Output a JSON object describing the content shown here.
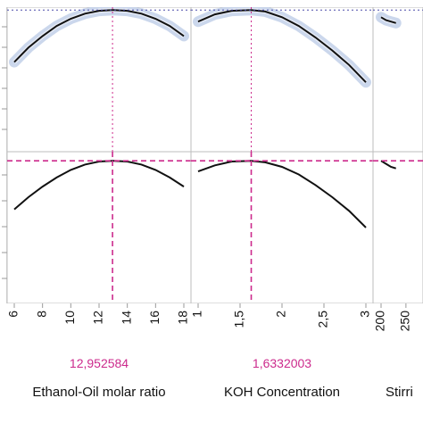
{
  "chart_data": {
    "type": "line",
    "panels": [
      {
        "factor_label": "Ethanol-Oil molar ratio",
        "current_value_label": "12,952584",
        "current_x": 12.952584,
        "x_range": [
          6,
          18
        ],
        "x_ticks": [
          {
            "value": 6,
            "label": "6"
          },
          {
            "value": 8,
            "label": "8"
          },
          {
            "value": 10,
            "label": "10"
          },
          {
            "value": 12,
            "label": "12"
          },
          {
            "value": 14,
            "label": "14"
          },
          {
            "value": 16,
            "label": "16"
          },
          {
            "value": 18,
            "label": "18"
          }
        ],
        "top_curve": {
          "x": [
            6,
            7,
            8,
            9,
            10,
            11,
            12,
            12.95,
            14,
            15,
            16,
            17,
            18
          ],
          "y": [
            0.62,
            0.72,
            0.8,
            0.87,
            0.92,
            0.955,
            0.975,
            0.98,
            0.975,
            0.955,
            0.92,
            0.87,
            0.8
          ]
        },
        "bottom_curve": {
          "x": [
            6,
            7,
            8,
            9,
            10,
            11,
            12,
            12.95,
            14,
            15,
            16,
            17,
            18
          ],
          "y": [
            0.62,
            0.7,
            0.77,
            0.83,
            0.88,
            0.915,
            0.935,
            0.94,
            0.935,
            0.915,
            0.88,
            0.83,
            0.77
          ]
        }
      },
      {
        "factor_label": "KOH Concentration",
        "current_value_label": "1,6332003",
        "current_x": 1.6332003,
        "x_range": [
          1,
          3
        ],
        "x_ticks": [
          {
            "value": 1,
            "label": "1"
          },
          {
            "value": 1.5,
            "label": "1,5"
          },
          {
            "value": 2,
            "label": "2"
          },
          {
            "value": 2.5,
            "label": "2,5"
          },
          {
            "value": 3,
            "label": "3"
          }
        ],
        "top_curve": {
          "x": [
            1,
            1.2,
            1.4,
            1.63,
            1.8,
            2,
            2.2,
            2.4,
            2.6,
            2.8,
            3
          ],
          "y": [
            0.9,
            0.95,
            0.975,
            0.98,
            0.97,
            0.93,
            0.87,
            0.79,
            0.7,
            0.6,
            0.48
          ]
        },
        "bottom_curve": {
          "x": [
            1,
            1.2,
            1.4,
            1.63,
            1.8,
            2,
            2.2,
            2.4,
            2.6,
            2.8,
            3
          ],
          "y": [
            0.87,
            0.91,
            0.935,
            0.94,
            0.93,
            0.9,
            0.85,
            0.78,
            0.7,
            0.61,
            0.5
          ]
        }
      },
      {
        "factor_label": "Stirri",
        "x_range": [
          200,
          600
        ],
        "x_ticks": [
          {
            "value": 200,
            "label": "200"
          },
          {
            "value": 250,
            "label": "250"
          }
        ],
        "top_curve": {
          "x": [
            200,
            210,
            220,
            230
          ],
          "y": [
            0.93,
            0.91,
            0.9,
            0.89
          ]
        },
        "bottom_curve": {
          "x": [
            200,
            210,
            220,
            230
          ],
          "y": [
            0.94,
            0.92,
            0.9,
            0.89
          ]
        }
      }
    ]
  }
}
